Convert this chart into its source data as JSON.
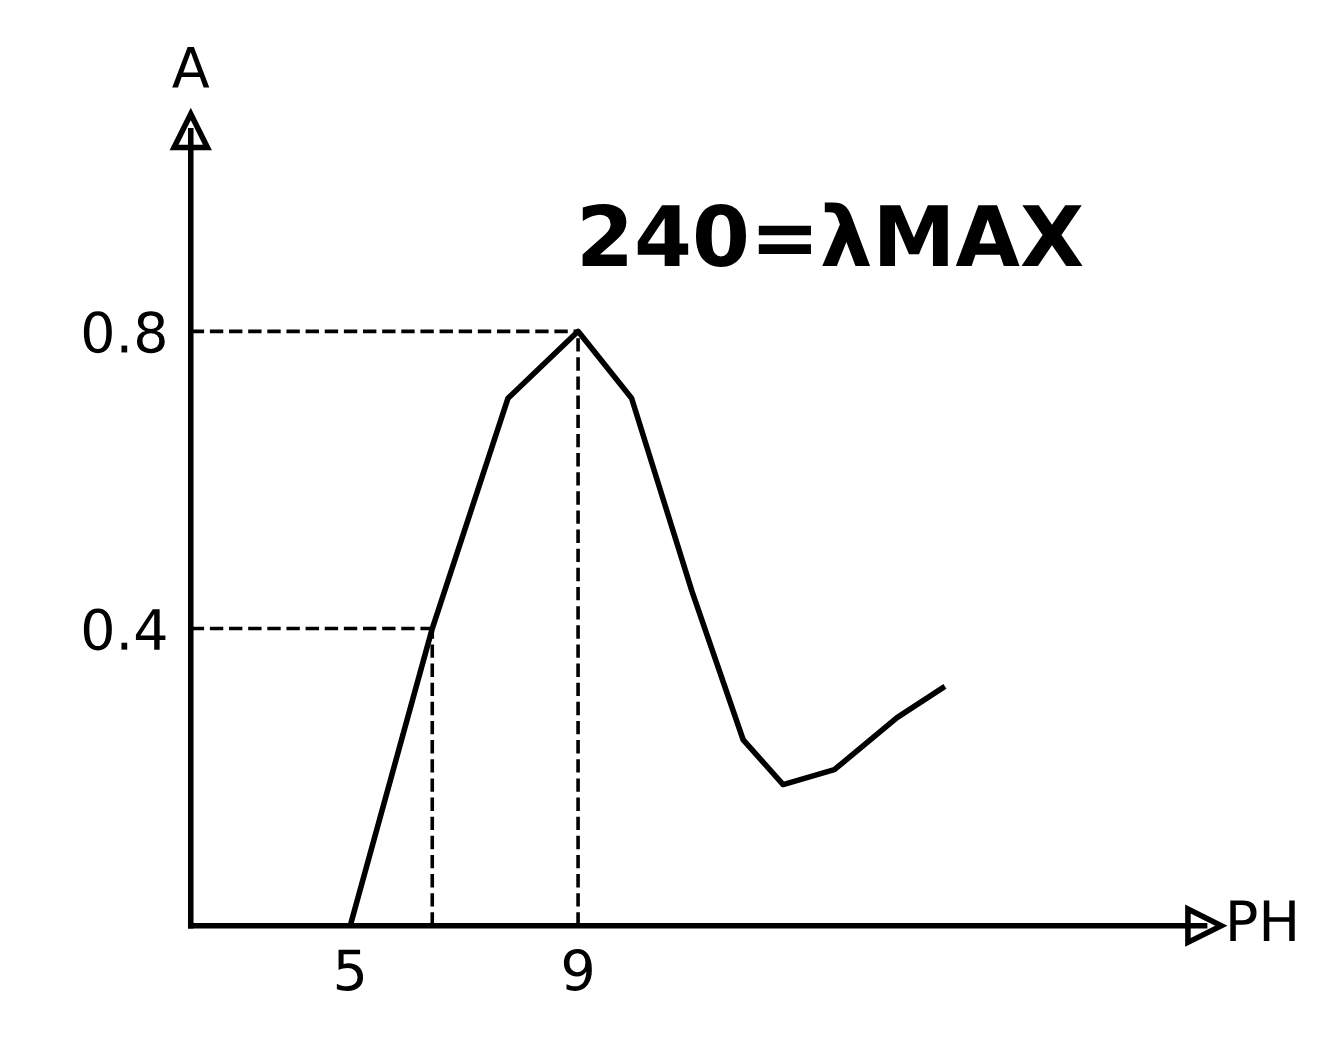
{
  "chart_data": {
    "type": "line",
    "xlabel": "PH",
    "ylabel": "A",
    "annotations": [
      "240=λMAX"
    ],
    "x": [
      5,
      6.44,
      7.77,
      9,
      9.94,
      11.0,
      11.9,
      12.6,
      13.5,
      14.6,
      15.4
    ],
    "series": [
      {
        "color": "#000000",
        "values": [
          0,
          0.4,
          0.71,
          0.8,
          0.71,
          0.45,
          0.25,
          0.19,
          0.21,
          0.28,
          0.32
        ]
      }
    ],
    "xlim": [
      2.2,
      20
    ],
    "ylim": [
      0,
      1.07
    ],
    "xticks": [
      5,
      9
    ],
    "yticks": [
      0.4,
      0.8
    ],
    "ref_lines": [
      {
        "axis": "y",
        "value": 0.8,
        "line_style": "dashed",
        "color": "#000000"
      },
      {
        "axis": "y",
        "value": 0.4,
        "line_style": "dashed",
        "color": "#000000"
      },
      {
        "axis": "x",
        "value": 9,
        "line_style": "dashed",
        "color": "#000000"
      },
      {
        "axis": "x",
        "value": 6.44,
        "line_style": "dashed",
        "color": "#000000"
      }
    ],
    "grid": false,
    "legend": false
  }
}
